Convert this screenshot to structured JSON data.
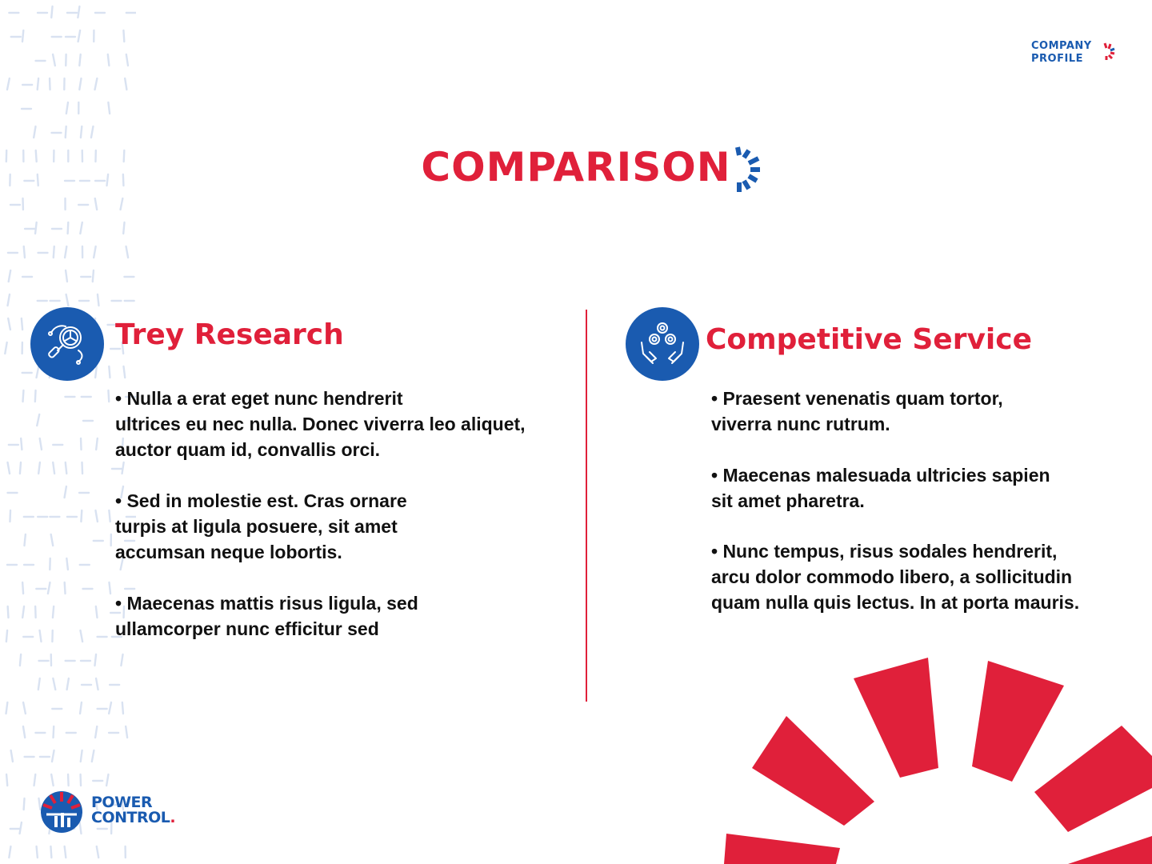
{
  "header": {
    "brand_line1": "COMPANY",
    "brand_line2": "PROFILE"
  },
  "title": "COMPARISON",
  "columns": [
    {
      "heading": "Trey Research",
      "icon": "magnifier-chart-icon",
      "bullets": [
        "• Nulla a erat eget nunc hendrerit\nultrices eu nec nulla. Donec viverra leo aliquet,\nauctor quam id, convallis orci.",
        "• Sed in molestie est. Cras ornare\nturpis at ligula posuere, sit amet\naccumsan neque lobortis.",
        "• Maecenas mattis risus ligula, sed\nullamcorper nunc efficitur sed"
      ]
    },
    {
      "heading": "Competitive Service",
      "icon": "hands-gears-icon",
      "bullets": [
        "• Praesent venenatis quam tortor,\nviverra nunc rutrum.",
        "• Maecenas malesuada ultricies sapien\nsit amet pharetra.",
        "• Nunc tempus, risus sodales hendrerit,\narcu dolor commodo libero, a sollicitudin\nquam nulla quis lectus. In at porta mauris."
      ]
    }
  ],
  "footer": {
    "logo_line1": "POWER",
    "logo_line2": "CONTROL",
    "logo_dot": "."
  },
  "colors": {
    "accent_red": "#e0203a",
    "brand_blue": "#1a5bb0",
    "text": "#111111"
  }
}
